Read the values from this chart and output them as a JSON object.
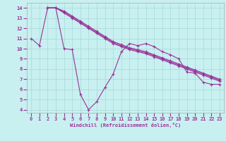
{
  "background_color": "#c8f0f0",
  "grid_color": "#a8d8d8",
  "line_color": "#993399",
  "xlim": [
    -0.5,
    23.5
  ],
  "ylim": [
    3.7,
    14.5
  ],
  "xticks": [
    0,
    1,
    2,
    3,
    4,
    5,
    6,
    7,
    8,
    9,
    10,
    11,
    12,
    13,
    14,
    15,
    16,
    17,
    18,
    19,
    20,
    21,
    22,
    23
  ],
  "yticks": [
    4,
    5,
    6,
    7,
    8,
    9,
    10,
    11,
    12,
    13,
    14
  ],
  "xlabel": "Windchill (Refroidissement éolien,°C)",
  "lines": [
    {
      "x": [
        0,
        1,
        2,
        3,
        4,
        5,
        6,
        7,
        8,
        9,
        10,
        11,
        12,
        13,
        14,
        15,
        16,
        17,
        18,
        19,
        20,
        21,
        22,
        23
      ],
      "y": [
        11,
        10.3,
        14.0,
        14.0,
        10.0,
        9.9,
        5.5,
        4.0,
        4.8,
        6.2,
        7.5,
        9.7,
        10.5,
        10.3,
        10.5,
        10.2,
        9.7,
        9.4,
        9.0,
        7.7,
        7.6,
        6.7,
        6.5,
        6.5
      ]
    },
    {
      "x": [
        2,
        3,
        4,
        5,
        6,
        7,
        8,
        9,
        10,
        11,
        12,
        13,
        14,
        15,
        16,
        17,
        18,
        19,
        20,
        21,
        22,
        23
      ],
      "y": [
        14.0,
        14.0,
        13.5,
        13.0,
        12.5,
        12.0,
        11.5,
        11.0,
        10.5,
        10.2,
        9.9,
        9.7,
        9.5,
        9.2,
        8.9,
        8.6,
        8.3,
        8.0,
        7.7,
        7.4,
        7.1,
        6.8
      ]
    },
    {
      "x": [
        2,
        3,
        4,
        5,
        6,
        7,
        8,
        9,
        10,
        11,
        12,
        13,
        14,
        15,
        16,
        17,
        18,
        19,
        20,
        21,
        22,
        23
      ],
      "y": [
        14.0,
        14.0,
        13.6,
        13.1,
        12.6,
        12.1,
        11.6,
        11.1,
        10.6,
        10.3,
        10.0,
        9.8,
        9.6,
        9.3,
        9.0,
        8.7,
        8.4,
        8.1,
        7.8,
        7.5,
        7.2,
        6.9
      ]
    },
    {
      "x": [
        2,
        3,
        4,
        5,
        6,
        7,
        8,
        9,
        10,
        11,
        12,
        13,
        14,
        15,
        16,
        17,
        18,
        19,
        20,
        21,
        22,
        23
      ],
      "y": [
        14.0,
        14.0,
        13.7,
        13.2,
        12.7,
        12.2,
        11.7,
        11.2,
        10.7,
        10.4,
        10.1,
        9.9,
        9.7,
        9.4,
        9.1,
        8.8,
        8.5,
        8.2,
        7.9,
        7.6,
        7.3,
        7.0
      ]
    }
  ]
}
